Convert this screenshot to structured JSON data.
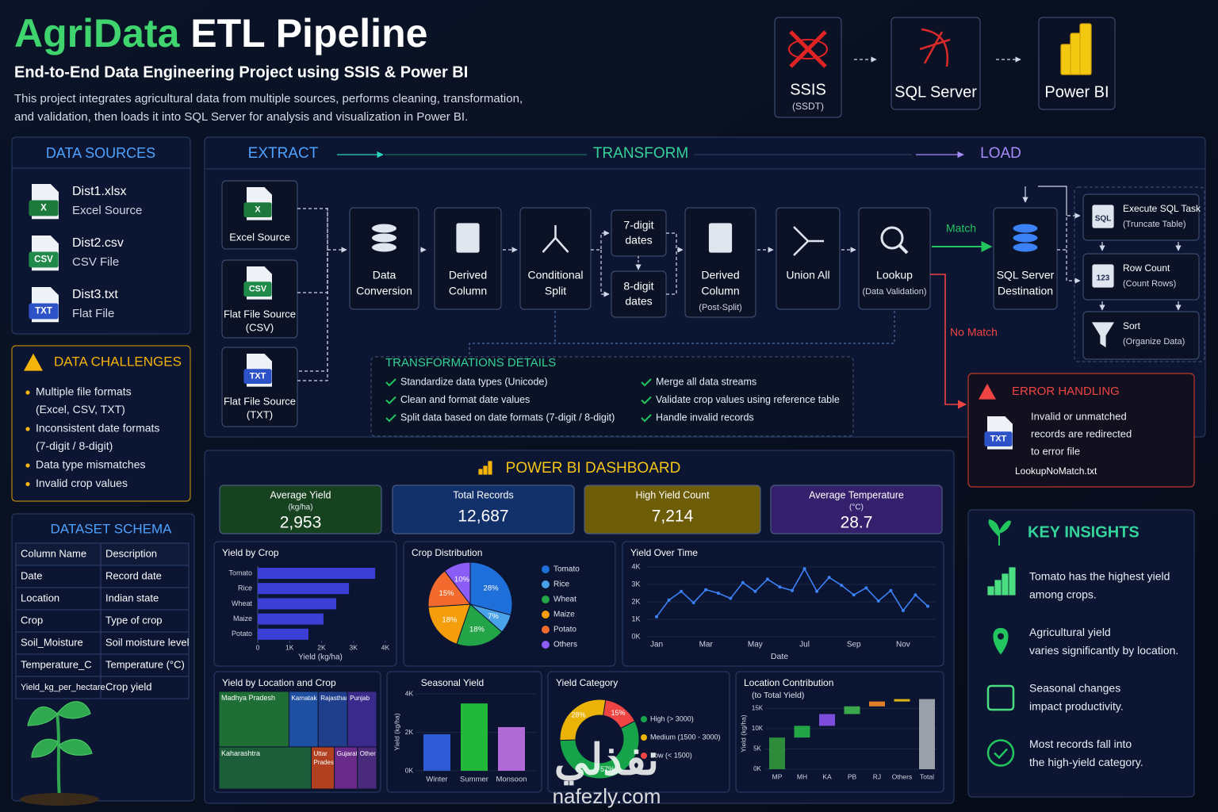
{
  "header": {
    "title_accent": "AgriData",
    "title": "ETL Pipeline",
    "subtitle": "End-to-End Data Engineering Project using SSIS & Power BI",
    "description": [
      "This project integrates agricultural data from multiple sources, performs cleaning, transformation,",
      "and validation, then loads it into SQL Server for analysis and visualization in Power BI."
    ]
  },
  "tools": [
    {
      "name": "SSIS",
      "note": "(SSDT)"
    },
    {
      "name": "SQL Server"
    },
    {
      "name": "Power BI"
    }
  ],
  "data_sources": {
    "title": "DATA SOURCES",
    "items": [
      {
        "badge": "X",
        "file": "Dist1.xlsx",
        "type": "Excel Source"
      },
      {
        "badge": "CSV",
        "file": "Dist2.csv",
        "type": "CSV File"
      },
      {
        "badge": "TXT",
        "file": "Dist3.txt",
        "type": "Flat File"
      }
    ]
  },
  "challenges": {
    "title": "DATA CHALLENGES",
    "items": [
      [
        "Multiple file formats",
        "(Excel, CSV, TXT)"
      ],
      [
        "Inconsistent date formats",
        "(7-digit / 8-digit)"
      ],
      [
        "Data type mismatches"
      ],
      [
        "Invalid crop values"
      ]
    ]
  },
  "schema": {
    "title": "DATASET SCHEMA",
    "columns": [
      "Column Name",
      "Description"
    ],
    "rows": [
      [
        "Date",
        "Record date"
      ],
      [
        "Location",
        "Indian state"
      ],
      [
        "Crop",
        "Type of crop"
      ],
      [
        "Soil_Moisture",
        "Soil moisture level"
      ],
      [
        "Temperature_C",
        "Temperature (°C)"
      ],
      [
        "Yield_kg_per_hectare",
        "Crop yield"
      ]
    ]
  },
  "pipeline": {
    "stages": [
      "EXTRACT",
      "TRANSFORM",
      "LOAD"
    ],
    "sources": [
      {
        "badge": "X",
        "label": [
          "Excel Source"
        ]
      },
      {
        "badge": "CSV",
        "label": [
          "Flat File Source",
          "(CSV)"
        ]
      },
      {
        "badge": "TXT",
        "label": [
          "Flat File Source",
          "(TXT)"
        ]
      }
    ],
    "steps": {
      "conversion": [
        "Data",
        "Conversion"
      ],
      "derived": [
        "Derived",
        "Column"
      ],
      "split": [
        "Conditional",
        "Split"
      ],
      "seven": [
        "7-digit",
        "dates"
      ],
      "eight": [
        "8-digit",
        "dates"
      ],
      "derived_post": [
        "Derived",
        "Column",
        "(Post-Split)"
      ],
      "union": [
        "Union All"
      ],
      "lookup": [
        "Lookup",
        "(Data Validation)"
      ],
      "destination": [
        "SQL Server",
        "Destination"
      ]
    },
    "match": "Match",
    "no_match": "No Match",
    "tasks": [
      {
        "icon": "SQL",
        "title": "Execute SQL Task",
        "note": "(Truncate Table)"
      },
      {
        "icon": "123",
        "title": "Row Count",
        "note": "(Count Rows)"
      },
      {
        "title": "Sort",
        "note": "(Organize Data)"
      }
    ]
  },
  "transform_details": {
    "title": "TRANSFORMATIONS DETAILS",
    "items": [
      "Standardize data types (Unicode)",
      "Clean and format date values",
      "Split data based on date formats (7-digit / 8-digit)",
      "Merge all data streams",
      "Validate crop values using reference table",
      "Handle invalid records"
    ]
  },
  "error_handling": {
    "title": "ERROR HANDLING",
    "text": [
      "Invalid or unmatched",
      "records are redirected",
      "to error file"
    ],
    "badge": "TXT",
    "file": "LookupNoMatch.txt"
  },
  "dashboard": {
    "title": "POWER BI DASHBOARD",
    "kpis": [
      {
        "label": "Average Yield",
        "unit": "(kg/ha)",
        "value": "2,953",
        "color": "#17421f"
      },
      {
        "label": "Total Records",
        "value": "12,687",
        "color": "#12306a"
      },
      {
        "label": "High Yield Count",
        "value": "7,214",
        "color": "#6e5d08"
      },
      {
        "label": "Average Temperature",
        "unit": "(°C)",
        "value": "28.7",
        "color": "#35206e"
      }
    ],
    "charts": [
      {
        "type": "barh",
        "title": "Yield by Crop",
        "categories": [
          "Tomato",
          "Rice",
          "Wheat",
          "Maize",
          "Potato"
        ],
        "values": [
          3680,
          2860,
          2460,
          2060,
          1590
        ],
        "color": "#3b3fd6",
        "xlim": [
          0,
          4000
        ],
        "xticks": [
          0,
          {
            "value": 1000,
            "label": "1K"
          },
          {
            "value": 2000,
            "label": "2K"
          },
          {
            "value": 3000,
            "label": "3K"
          },
          {
            "value": 4000,
            "label": "4K"
          }
        ],
        "xlabel": "Yield (kg/ha)"
      },
      {
        "type": "pie",
        "title": "Crop Distribution",
        "categories": [
          "Tomato",
          "Rice",
          "Wheat",
          "Maize",
          "Potato",
          "Others"
        ],
        "values": [
          28,
          7,
          18,
          18,
          15,
          10
        ],
        "value_labels": [
          "28%",
          "7%",
          "18%",
          "18%",
          "15%",
          "10%"
        ],
        "colors": [
          "#1e6fd9",
          "#4aa3e8",
          "#22a447",
          "#f59e0b",
          "#f26a2e",
          "#8b5cf6"
        ]
      },
      {
        "type": "line",
        "title": "Yield Over Time",
        "categories": [
          "Jan",
          null,
          null,
          null,
          "Mar",
          null,
          null,
          null,
          "May",
          null,
          null,
          null,
          "Jul",
          null,
          null,
          null,
          "Sep",
          null,
          null,
          null,
          "Nov",
          null,
          null
        ],
        "values": [
          1150,
          2100,
          2600,
          1950,
          2700,
          2500,
          2200,
          3100,
          2600,
          3300,
          2850,
          2650,
          3900,
          2600,
          3400,
          2950,
          2400,
          2800,
          2050,
          2650,
          1500,
          2400,
          1750
        ],
        "color": "#3b82f6",
        "ylim": [
          0,
          4000
        ],
        "yticks": [
          {
            "value": 0,
            "label": "0K"
          },
          {
            "value": 1000,
            "label": "1K"
          },
          {
            "value": 2000,
            "label": "2K"
          },
          {
            "value": 3000,
            "label": "3K"
          },
          {
            "value": 4000,
            "label": "4K"
          }
        ],
        "xlabel": "Date"
      },
      {
        "type": "treemap",
        "title": "Yield by Location and Crop",
        "categories": [
          "Madhya Pradesh",
          "Karnataka",
          "Rajasthan",
          "Punjab",
          "Kaharashtra",
          "Uttar Pradesh",
          "Gujarat",
          "Others"
        ],
        "values": [
          24,
          10,
          10,
          10,
          24,
          6,
          6,
          5
        ],
        "colors": [
          "#1f6e36",
          "#1e4fa0",
          "#1f3f8c",
          "#3a2a8c",
          "#1c5e3a",
          "#b0401f",
          "#6a2a8a",
          "#4a2a7a"
        ]
      },
      {
        "type": "bar",
        "title": "Seasonal Yield",
        "categories": [
          "Winter",
          "Summer",
          "Monsoon"
        ],
        "values": [
          1900,
          3500,
          2270
        ],
        "colors": [
          "#2f5bd6",
          "#22b83a",
          "#b06ad6"
        ],
        "ylim": [
          0,
          4000
        ],
        "yticks": [
          {
            "value": 0,
            "label": "0K"
          },
          {
            "value": 2000,
            "label": "2K"
          },
          {
            "value": 4000,
            "label": "4K"
          }
        ],
        "ylabel": "Yield (kg/ha)"
      },
      {
        "type": "donut",
        "title": "Yield Category",
        "categories": [
          "High (> 3000)",
          "Medium (1500 - 3000)",
          "Low (< 1500)"
        ],
        "values": [
          57,
          28,
          15
        ],
        "value_labels": [
          "57%",
          "28%",
          "15%"
        ],
        "colors": [
          "#16a34a",
          "#eab308",
          "#ef4444"
        ]
      },
      {
        "type": "waterfall",
        "title": "Location Contribution",
        "subtitle": "(to Total Yield)",
        "categories": [
          "MP",
          "MH",
          "KA",
          "PB",
          "RJ",
          "Others",
          "Total"
        ],
        "values": [
          7800,
          2900,
          2900,
          1900,
          1200,
          600,
          17300
        ],
        "colors": [
          "#2e8b3a",
          "#22a447",
          "#7c4ddb",
          "#3aa84a",
          "#e0802a",
          "#d9b316",
          "#9aa0a8"
        ],
        "ylim": [
          0,
          18000
        ],
        "yticks": [
          {
            "value": 0,
            "label": "0K"
          },
          {
            "value": 5000,
            "label": "5K"
          },
          {
            "value": 10000,
            "label": "10K"
          },
          {
            "value": 15000,
            "label": "15K"
          }
        ],
        "ylabel": "Yield (kg/ha)"
      }
    ]
  },
  "insights": {
    "title": "KEY INSIGHTS",
    "items": [
      [
        "Tomato has the highest yield",
        "among crops."
      ],
      [
        "Agricultural yield",
        "varies significantly by location."
      ],
      [
        "Seasonal changes",
        "impact productivity."
      ],
      [
        "Most records fall into",
        "the high-yield category."
      ]
    ]
  },
  "watermark": {
    "arabic": "نفذلي",
    "url": "nafezly.com"
  }
}
